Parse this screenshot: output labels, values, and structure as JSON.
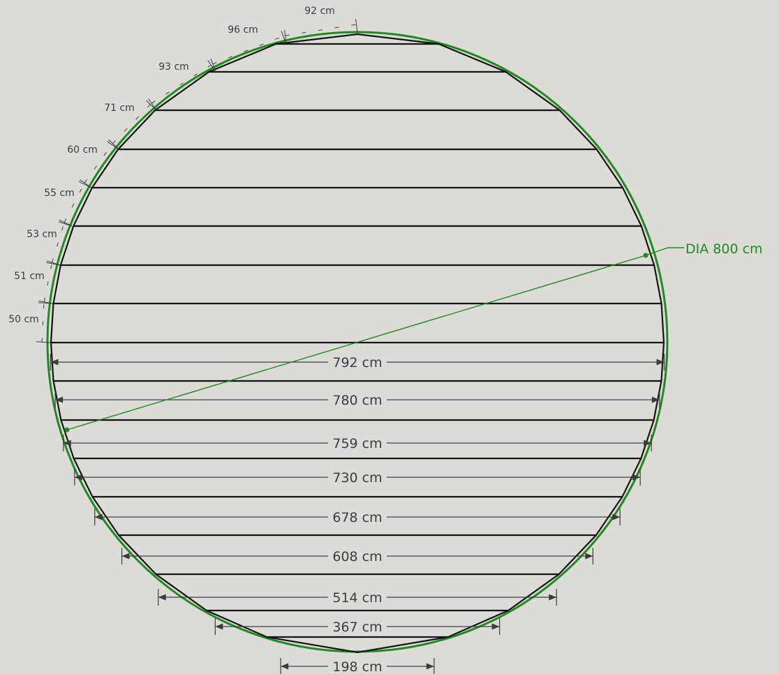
{
  "colors": {
    "background": "#dcdbd6",
    "circle": "#1f8a1f",
    "board": "#151515",
    "dimension": "#3c3c3c"
  },
  "diagram": {
    "diameter_label": "DIA 800 cm",
    "diameter_cm": 800,
    "board_widths": [
      {
        "label": "792 cm",
        "value_cm": 792
      },
      {
        "label": "780 cm",
        "value_cm": 780
      },
      {
        "label": "759 cm",
        "value_cm": 759
      },
      {
        "label": "730 cm",
        "value_cm": 730
      },
      {
        "label": "678 cm",
        "value_cm": 678
      },
      {
        "label": "608 cm",
        "value_cm": 608
      },
      {
        "label": "514 cm",
        "value_cm": 514
      },
      {
        "label": "367 cm",
        "value_cm": 367
      },
      {
        "label": "198 cm",
        "value_cm": 198
      }
    ],
    "arc_segments": [
      {
        "label": "50 cm",
        "value_cm": 50
      },
      {
        "label": "51 cm",
        "value_cm": 51
      },
      {
        "label": "53 cm",
        "value_cm": 53
      },
      {
        "label": "55 cm",
        "value_cm": 55
      },
      {
        "label": "60 cm",
        "value_cm": 60
      },
      {
        "label": "71 cm",
        "value_cm": 71
      },
      {
        "label": "93 cm",
        "value_cm": 93
      },
      {
        "label": "96 cm",
        "value_cm": 96
      },
      {
        "label": "92 cm",
        "value_cm": 92
      }
    ]
  }
}
